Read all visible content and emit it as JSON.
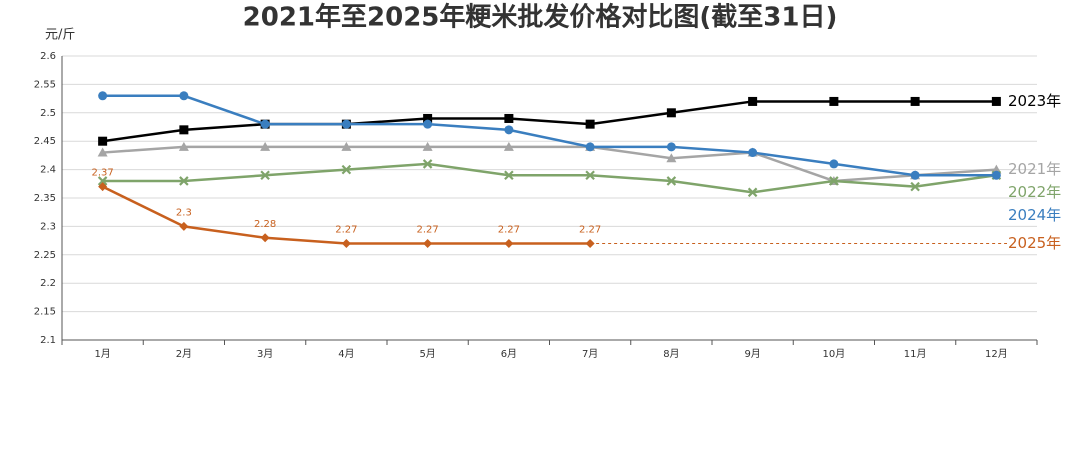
{
  "chart_data": {
    "type": "line",
    "title": "2021年至2025年粳米批发价格对比图(截至31日)",
    "ylabel": "元/斤",
    "categories": [
      "1月",
      "2月",
      "3月",
      "4月",
      "5月",
      "6月",
      "7月",
      "8月",
      "9月",
      "10月",
      "11月",
      "12月"
    ],
    "ylim": [
      2.1,
      2.6
    ],
    "yticks": [
      2.1,
      2.15,
      2.2,
      2.25,
      2.3,
      2.35,
      2.4,
      2.45,
      2.5,
      2.55,
      2.6
    ],
    "grid": true,
    "series": [
      {
        "name": "2021年",
        "color": "#a5a5a5",
        "marker": "triangle",
        "values": [
          2.43,
          2.44,
          2.44,
          2.44,
          2.44,
          2.44,
          2.44,
          2.42,
          2.43,
          2.38,
          2.39,
          2.4
        ]
      },
      {
        "name": "2022年",
        "color": "#7fa46a",
        "marker": "x",
        "values": [
          2.38,
          2.38,
          2.39,
          2.4,
          2.41,
          2.39,
          2.39,
          2.38,
          2.36,
          2.38,
          2.37,
          2.39
        ]
      },
      {
        "name": "2023年",
        "color": "#000000",
        "marker": "square",
        "values": [
          2.45,
          2.47,
          2.48,
          2.48,
          2.49,
          2.49,
          2.48,
          2.5,
          2.52,
          2.52,
          2.52,
          2.52
        ]
      },
      {
        "name": "2024年",
        "color": "#3a7ebf",
        "marker": "circle",
        "values": [
          2.53,
          2.53,
          2.48,
          2.48,
          2.48,
          2.47,
          2.44,
          2.44,
          2.43,
          2.41,
          2.39,
          2.39
        ]
      },
      {
        "name": "2025年",
        "color": "#c8601e",
        "marker": "diamond",
        "data_labels": true,
        "values": [
          2.37,
          2.3,
          2.28,
          2.27,
          2.27,
          2.27,
          2.27,
          null,
          null,
          null,
          null,
          null
        ]
      }
    ]
  }
}
